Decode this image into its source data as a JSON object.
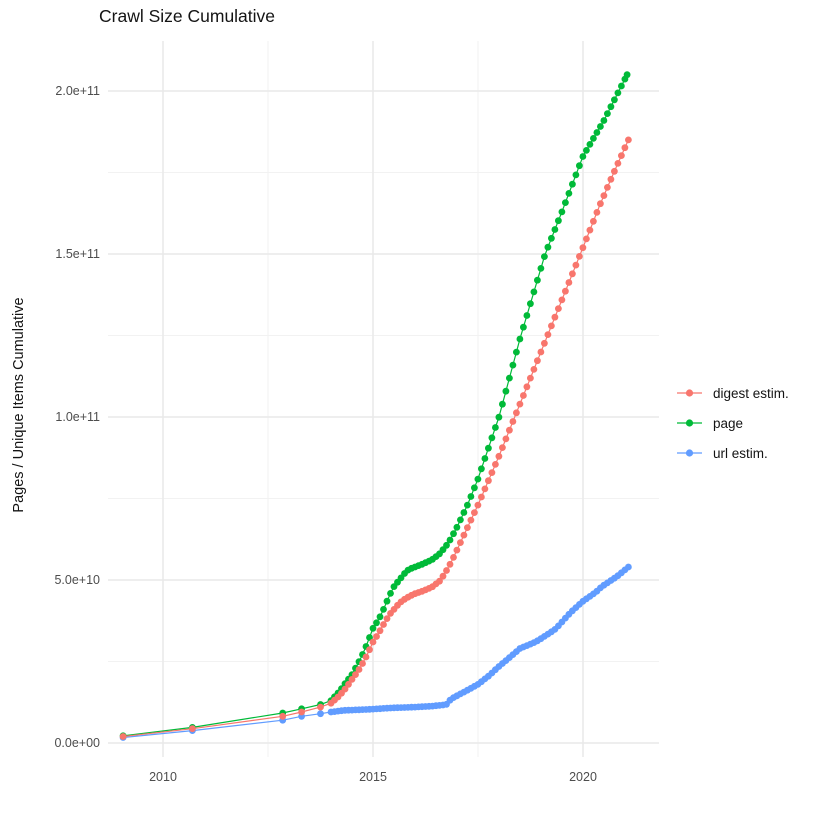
{
  "chart_data": {
    "type": "line",
    "title": "Crawl Size Cumulative",
    "xlabel": "",
    "ylabel": "Pages / Unique Items Cumulative",
    "xlim": [
      2008.7,
      2021.9
    ],
    "ylim": [
      0,
      215000000000.0
    ],
    "grid": true,
    "x_ticks": [
      {
        "label": "2010",
        "value": 2010
      },
      {
        "label": "2015",
        "value": 2015
      },
      {
        "label": "2020",
        "value": 2020
      }
    ],
    "x_minor_ticks": [
      2012.5,
      2017.5
    ],
    "y_ticks": [
      {
        "label": "0.0e+00",
        "value": 0
      },
      {
        "label": "5.0e+10",
        "value": 50000000000.0
      },
      {
        "label": "1.0e+11",
        "value": 100000000000.0
      },
      {
        "label": "1.5e+11",
        "value": 150000000000.0
      },
      {
        "label": "2.0e+11",
        "value": 200000000000.0
      }
    ],
    "y_minor_ticks": [
      25000000000.0,
      75000000000.0,
      125000000000.0,
      175000000000.0
    ],
    "legend": {
      "position": "right",
      "entries": [
        {
          "label": "digest estim.",
          "color": "#F8766D"
        },
        {
          "label": "page",
          "color": "#00BA38"
        },
        {
          "label": "url estim.",
          "color": "#619CFF"
        }
      ]
    },
    "dense_sampling_from_year": 2014.0,
    "sample_interval_years": 0.0833,
    "series": [
      {
        "name": "digest estim.",
        "color": "#F8766D",
        "points": [
          [
            2009.05,
            2000000000.0
          ],
          [
            2010.7,
            4400000000.0
          ],
          [
            2012.85,
            8200000000.0
          ],
          [
            2013.3,
            9500000000.0
          ],
          [
            2013.75,
            11000000000.0
          ],
          [
            2014.0,
            12200000000.0
          ],
          [
            2014.2,
            14500000000.0
          ],
          [
            2014.35,
            16800000000.0
          ],
          [
            2014.5,
            19500000000.0
          ],
          [
            2014.65,
            22200000000.0
          ],
          [
            2014.8,
            25500000000.0
          ],
          [
            2014.93,
            29000000000.0
          ],
          [
            2015.0,
            31000000000.0
          ],
          [
            2015.1,
            33000000000.0
          ],
          [
            2015.2,
            35200000000.0
          ],
          [
            2015.3,
            37500000000.0
          ],
          [
            2015.4,
            39500000000.0
          ],
          [
            2015.5,
            41000000000.0
          ],
          [
            2015.6,
            42500000000.0
          ],
          [
            2015.7,
            43700000000.0
          ],
          [
            2015.8,
            44500000000.0
          ],
          [
            2015.9,
            45200000000.0
          ],
          [
            2016.0,
            45800000000.0
          ],
          [
            2016.2,
            46700000000.0
          ],
          [
            2016.4,
            47800000000.0
          ],
          [
            2016.6,
            49800000000.0
          ],
          [
            2016.8,
            54000000000.0
          ],
          [
            2016.9,
            56500000000.0
          ],
          [
            2017.0,
            59200000000.0
          ],
          [
            2017.5,
            73000000000.0
          ],
          [
            2018.0,
            88000000000.0
          ],
          [
            2018.5,
            104000000000.0
          ],
          [
            2019.0,
            120000000000.0
          ],
          [
            2019.5,
            136000000000.0
          ],
          [
            2020.0,
            152000000000.0
          ],
          [
            2020.4,
            165000000000.0
          ],
          [
            2020.7,
            174000000000.0
          ],
          [
            2021.08,
            185000000000.0
          ]
        ]
      },
      {
        "name": "page",
        "color": "#00BA38",
        "points": [
          [
            2009.05,
            2200000000.0
          ],
          [
            2010.7,
            4800000000.0
          ],
          [
            2012.85,
            9200000000.0
          ],
          [
            2013.3,
            10500000000.0
          ],
          [
            2013.75,
            11800000000.0
          ],
          [
            2014.0,
            13000000000.0
          ],
          [
            2014.2,
            15800000000.0
          ],
          [
            2014.35,
            18500000000.0
          ],
          [
            2014.5,
            21000000000.0
          ],
          [
            2014.65,
            24500000000.0
          ],
          [
            2014.8,
            28500000000.0
          ],
          [
            2014.93,
            32800000000.0
          ],
          [
            2015.0,
            35200000000.0
          ],
          [
            2015.1,
            37200000000.0
          ],
          [
            2015.2,
            39500000000.0
          ],
          [
            2015.3,
            42500000000.0
          ],
          [
            2015.4,
            45500000000.0
          ],
          [
            2015.5,
            48000000000.0
          ],
          [
            2015.6,
            49600000000.0
          ],
          [
            2015.7,
            51200000000.0
          ],
          [
            2015.8,
            52800000000.0
          ],
          [
            2015.9,
            53500000000.0
          ],
          [
            2016.0,
            54000000000.0
          ],
          [
            2016.2,
            55000000000.0
          ],
          [
            2016.4,
            56200000000.0
          ],
          [
            2016.6,
            58200000000.0
          ],
          [
            2016.8,
            61500000000.0
          ],
          [
            2017.0,
            66200000000.0
          ],
          [
            2017.25,
            73000000000.0
          ],
          [
            2017.5,
            81000000000.0
          ],
          [
            2017.75,
            90500000000.0
          ],
          [
            2018.0,
            100000000000.0
          ],
          [
            2018.5,
            124000000000.0
          ],
          [
            2019.1,
            150000000000.0
          ],
          [
            2019.5,
            163000000000.0
          ],
          [
            2020.0,
            180000000000.0
          ],
          [
            2020.5,
            191000000000.0
          ],
          [
            2021.05,
            205000000000.0
          ]
        ]
      },
      {
        "name": "url estim.",
        "color": "#619CFF",
        "points": [
          [
            2009.05,
            1700000000.0
          ],
          [
            2010.7,
            3800000000.0
          ],
          [
            2012.85,
            7000000000.0
          ],
          [
            2013.3,
            8200000000.0
          ],
          [
            2013.75,
            9000000000.0
          ],
          [
            2014.0,
            9500000000.0
          ],
          [
            2014.3,
            10000000000.0
          ],
          [
            2014.7,
            10200000000.0
          ],
          [
            2015.0,
            10400000000.0
          ],
          [
            2015.5,
            10800000000.0
          ],
          [
            2016.0,
            11000000000.0
          ],
          [
            2016.4,
            11300000000.0
          ],
          [
            2016.7,
            11700000000.0
          ],
          [
            2016.78,
            12000000000.0
          ],
          [
            2016.85,
            13500000000.0
          ],
          [
            2017.0,
            14500000000.0
          ],
          [
            2017.25,
            16200000000.0
          ],
          [
            2017.5,
            18000000000.0
          ],
          [
            2017.75,
            20500000000.0
          ],
          [
            2018.0,
            23500000000.0
          ],
          [
            2018.25,
            26200000000.0
          ],
          [
            2018.5,
            29000000000.0
          ],
          [
            2018.87,
            31000000000.0
          ],
          [
            2019.0,
            32000000000.0
          ],
          [
            2019.35,
            35000000000.0
          ],
          [
            2019.7,
            40000000000.0
          ],
          [
            2020.0,
            43500000000.0
          ],
          [
            2020.3,
            46200000000.0
          ],
          [
            2020.45,
            48000000000.0
          ],
          [
            2020.8,
            51000000000.0
          ],
          [
            2021.08,
            54000000000.0
          ]
        ]
      }
    ]
  }
}
